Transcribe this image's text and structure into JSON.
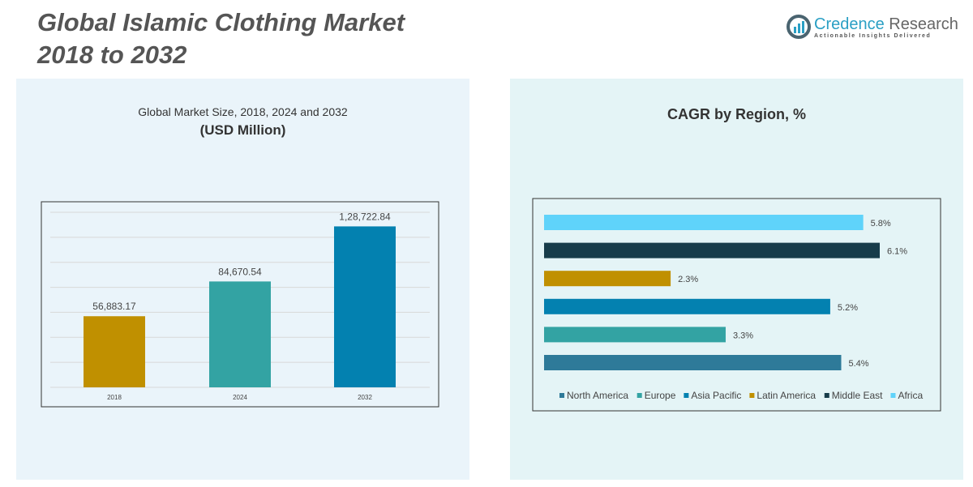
{
  "header": {
    "title_line1": "Global Islamic Clothing Market",
    "title_line2": "2018 to 2032"
  },
  "logo": {
    "name_part1": "Credence",
    "name_part2": " Research",
    "tagline": "Actionable Insights Delivered"
  },
  "chart_data": [
    {
      "type": "bar",
      "title": "Global Market Size, 2018, 2024 and 2032",
      "subtitle": "(USD Million)",
      "categories": [
        "2018",
        "2024",
        "2032"
      ],
      "values": [
        56883.17,
        84670.54,
        128722.84
      ],
      "labels": [
        "56,883.17",
        "84,670.54",
        "1,28,722.84"
      ],
      "colors": [
        "#c09000",
        "#33a3a3",
        "#0381b0"
      ],
      "ylim": [
        0,
        140000
      ],
      "grid": true
    },
    {
      "type": "bar",
      "orientation": "horizontal",
      "title": "CAGR by Region, %",
      "categories": [
        "Africa",
        "Middle East",
        "Latin America",
        "Asia Pacific",
        "Europe",
        "North America"
      ],
      "values": [
        5.8,
        6.1,
        2.3,
        5.2,
        3.3,
        5.4
      ],
      "labels": [
        "5.8%",
        "6.1%",
        "2.3%",
        "5.2%",
        "3.3%",
        "5.4%"
      ],
      "colors": [
        "#5fd3fa",
        "#173c4a",
        "#c09000",
        "#0381b0",
        "#33a3a3",
        "#2e7a99"
      ],
      "legend": [
        "North America",
        "Europe",
        "Asia Pacific",
        "Latin America",
        "Middle East",
        "Africa"
      ],
      "legend_colors": [
        "#2e7a99",
        "#33a3a3",
        "#0381b0",
        "#c09000",
        "#173c4a",
        "#5fd3fa"
      ],
      "legend_position": "bottom"
    }
  ]
}
